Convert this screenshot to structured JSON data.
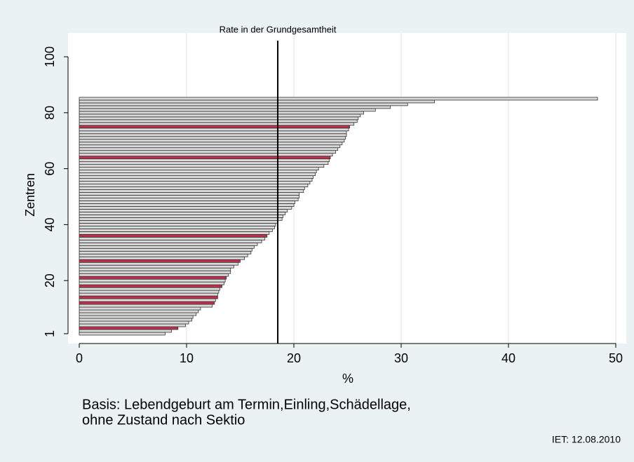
{
  "chart_data": {
    "type": "hbar",
    "x_label": "%",
    "y_label": "Zentren",
    "y": [
      1,
      2,
      3,
      4,
      5,
      6,
      7,
      8,
      9,
      10,
      11,
      12,
      13,
      14,
      15,
      16,
      17,
      18,
      19,
      20,
      21,
      22,
      23,
      24,
      25,
      26,
      27,
      28,
      29,
      30,
      31,
      32,
      33,
      34,
      35,
      36,
      37,
      38,
      39,
      40,
      41,
      42,
      43,
      44,
      45,
      46,
      47,
      48,
      49,
      50,
      51,
      52,
      53,
      54,
      55,
      56,
      57,
      58,
      59,
      60,
      61,
      62,
      63,
      64,
      65,
      66,
      67,
      68,
      69,
      70,
      71,
      72,
      73,
      74,
      75,
      76,
      77,
      78,
      79,
      80,
      81,
      82,
      83,
      84,
      85
    ],
    "values": [
      8.0,
      8.6,
      9.2,
      9.9,
      10.2,
      10.5,
      10.6,
      10.9,
      11.1,
      11.3,
      12.4,
      12.6,
      12.7,
      12.9,
      12.9,
      13.0,
      13.1,
      13.3,
      13.5,
      13.6,
      13.7,
      13.9,
      14.1,
      14.1,
      14.4,
      14.8,
      15.0,
      15.4,
      15.7,
      16.0,
      16.1,
      16.3,
      16.6,
      17.0,
      17.3,
      17.5,
      17.7,
      18.0,
      18.2,
      18.3,
      18.5,
      18.9,
      19.0,
      19.2,
      19.4,
      19.8,
      20.0,
      20.1,
      20.4,
      20.5,
      20.5,
      20.9,
      21.0,
      21.3,
      21.5,
      21.7,
      21.8,
      22.0,
      22.1,
      22.3,
      22.8,
      23.2,
      23.3,
      23.4,
      23.6,
      23.9,
      24.1,
      24.3,
      24.5,
      24.7,
      24.8,
      24.9,
      24.9,
      25.1,
      25.2,
      25.6,
      25.9,
      26.0,
      26.2,
      26.5,
      27.6,
      29.0,
      30.6,
      33.1,
      48.3
    ],
    "colors": [
      "#d9d9d9",
      "#d9d9d9",
      "#c0304a",
      "#d9d9d9",
      "#d9d9d9",
      "#d9d9d9",
      "#d9d9d9",
      "#d9d9d9",
      "#d9d9d9",
      "#d9d9d9",
      "#d9d9d9",
      "#c0304a",
      "#d9d9d9",
      "#c0304a",
      "#d9d9d9",
      "#d9d9d9",
      "#d9d9d9",
      "#c0304a",
      "#d9d9d9",
      "#d9d9d9",
      "#c0304a",
      "#d9d9d9",
      "#d9d9d9",
      "#d9d9d9",
      "#d9d9d9",
      "#d9d9d9",
      "#c0304a",
      "#d9d9d9",
      "#d9d9d9",
      "#d9d9d9",
      "#d9d9d9",
      "#d9d9d9",
      "#d9d9d9",
      "#d9d9d9",
      "#d9d9d9",
      "#c0304a",
      "#d9d9d9",
      "#d9d9d9",
      "#d9d9d9",
      "#d9d9d9",
      "#d9d9d9",
      "#d9d9d9",
      "#d9d9d9",
      "#d9d9d9",
      "#d9d9d9",
      "#d9d9d9",
      "#d9d9d9",
      "#d9d9d9",
      "#d9d9d9",
      "#d9d9d9",
      "#d9d9d9",
      "#d9d9d9",
      "#d9d9d9",
      "#d9d9d9",
      "#d9d9d9",
      "#d9d9d9",
      "#d9d9d9",
      "#d9d9d9",
      "#d9d9d9",
      "#d9d9d9",
      "#d9d9d9",
      "#d9d9d9",
      "#d9d9d9",
      "#c0304a",
      "#d9d9d9",
      "#d9d9d9",
      "#d9d9d9",
      "#d9d9d9",
      "#d9d9d9",
      "#d9d9d9",
      "#d9d9d9",
      "#d9d9d9",
      "#d9d9d9",
      "#d9d9d9",
      "#c0304a",
      "#d9d9d9",
      "#d9d9d9",
      "#d9d9d9",
      "#d9d9d9",
      "#d9d9d9",
      "#d9d9d9",
      "#d9d9d9",
      "#d9d9d9",
      "#d9d9d9",
      "#d9d9d9"
    ],
    "xlim": [
      0,
      50
    ],
    "xticks": [
      0,
      10,
      20,
      30,
      40,
      50
    ],
    "ylim": [
      1,
      100
    ],
    "yticks": [
      1,
      20,
      40,
      60,
      80,
      100
    ],
    "grid": true,
    "reference_line": {
      "value": 18.5,
      "label": "Rate in der Grundgesamtheit"
    },
    "note": [
      "Basis: Lebendgeburt am Termin,Einling,Schädellage,",
      "ohne Zustand nach Sektio"
    ],
    "source": "IET: 12.08.2010"
  }
}
